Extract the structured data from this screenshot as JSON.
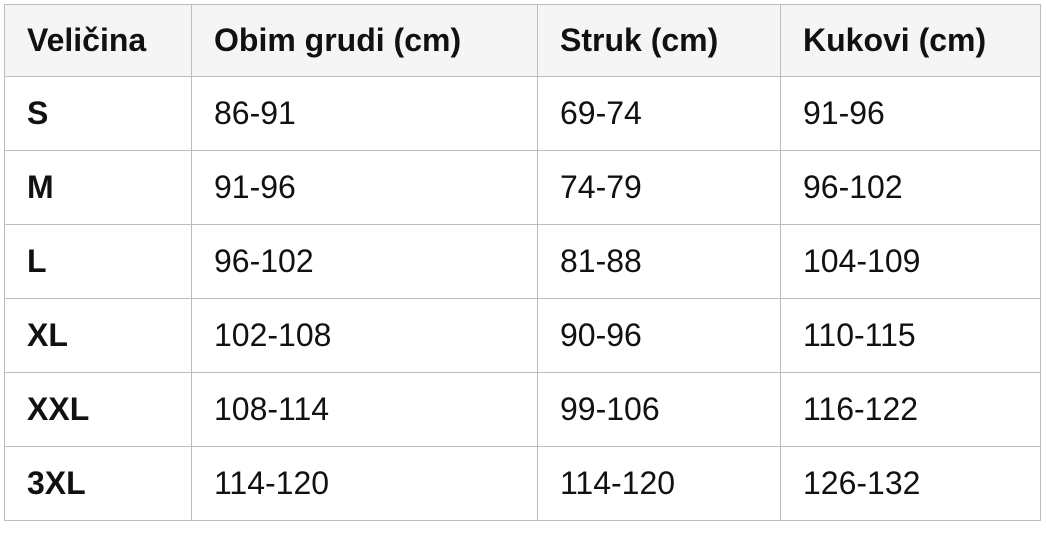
{
  "table": {
    "header": [
      "Veličina",
      "Obim grudi (cm)",
      "Struk (cm)",
      "Kukovi (cm)"
    ],
    "rows": [
      [
        "S",
        "86-91",
        "69-74",
        "91-96"
      ],
      [
        "M",
        "91-96",
        "74-79",
        "96-102"
      ],
      [
        "L",
        "96-102",
        "81-88",
        "104-109"
      ],
      [
        "XL",
        "102-108",
        "90-96",
        "110-115"
      ],
      [
        "XXL",
        "108-114",
        "99-106",
        "116-122"
      ],
      [
        "3XL",
        "114-120",
        "114-120",
        "126-132"
      ]
    ]
  }
}
